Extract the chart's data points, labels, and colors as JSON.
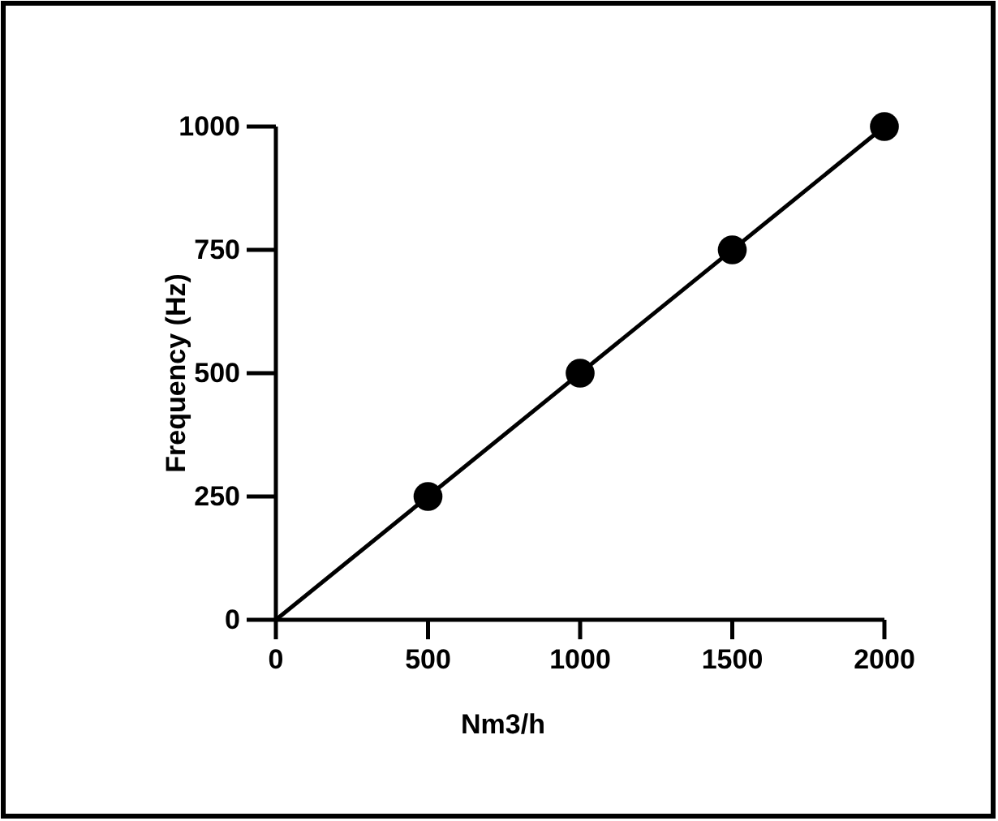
{
  "chart_data": {
    "type": "line",
    "xlabel": "Nm3/h",
    "ylabel": "Frequency (Hz)",
    "xlim": [
      0,
      2000
    ],
    "xticks": [
      0,
      500,
      1000,
      1500,
      2000
    ],
    "ylim": [
      0,
      1000
    ],
    "yticks": [
      0,
      250,
      500,
      750,
      1000
    ],
    "grid": false,
    "series": [
      {
        "type": "line",
        "color": "#000000",
        "marker": "none",
        "x": [
          0,
          2000
        ],
        "values": [
          0,
          1000
        ]
      },
      {
        "type": "scatter",
        "color": "#000000",
        "marker": "circle",
        "x": [
          500,
          1000,
          1500,
          2000
        ],
        "values": [
          250,
          500,
          750,
          1000
        ]
      }
    ]
  }
}
